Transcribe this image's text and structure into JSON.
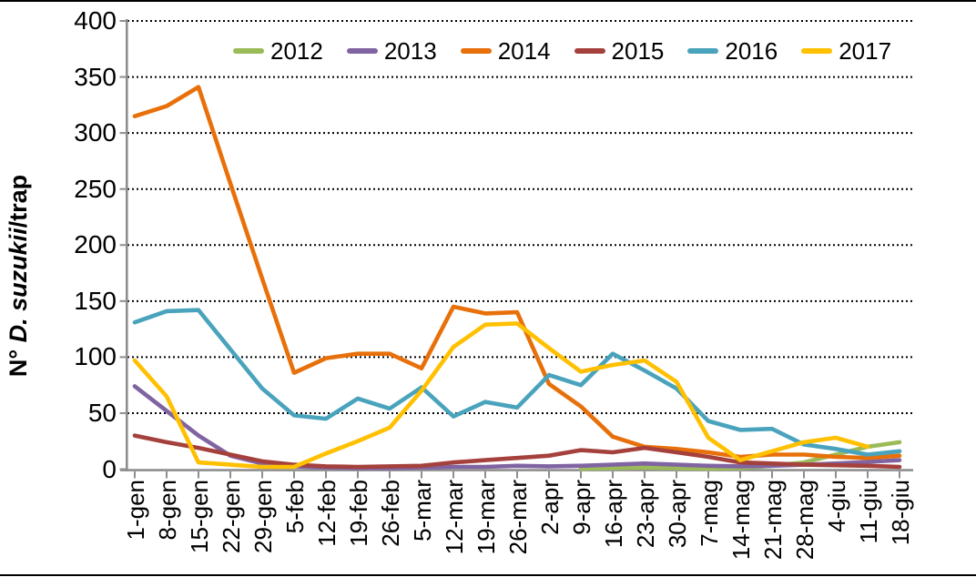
{
  "chart_data": {
    "type": "line",
    "title": "",
    "ylabel": {
      "prefix": "N° ",
      "italic": "D. suzukii",
      "suffix": "/trap",
      "full": "N° D. suzukii/trap"
    },
    "x_categories": [
      "1-gen",
      "8-gen",
      "15-gen",
      "22-gen",
      "29-gen",
      "5-feb",
      "12-feb",
      "19-feb",
      "26-feb",
      "5-mar",
      "12-mar",
      "19-mar",
      "26-mar",
      "2-apr",
      "9-apr",
      "16-apr",
      "23-apr",
      "30-apr",
      "7-mag",
      "14-mag",
      "21-mag",
      "28-mag",
      "4-giu",
      "11-giu",
      "18-giu"
    ],
    "y_axis": {
      "min": 0,
      "max": 400,
      "step": 50,
      "tick_labels": [
        "0",
        "50",
        "100",
        "150",
        "200",
        "250",
        "300",
        "350",
        "400"
      ]
    },
    "legend_position": "top",
    "grid": {
      "horizontal": "dotted",
      "color": "#000000"
    },
    "axis_color": "#8E8E8E",
    "series": [
      {
        "name": "2012",
        "color": "#9BBB59",
        "values": [
          null,
          null,
          null,
          null,
          null,
          null,
          null,
          null,
          null,
          null,
          null,
          null,
          null,
          null,
          0.5,
          1,
          1.5,
          1,
          0.5,
          1,
          3,
          6,
          13,
          20,
          24
        ]
      },
      {
        "name": "2013",
        "color": "#8064A2",
        "values": [
          74,
          52,
          30,
          12,
          5,
          2.5,
          1.5,
          1,
          1,
          1.5,
          2,
          2,
          3,
          2.5,
          3,
          4,
          5,
          4,
          3,
          2.5,
          3,
          4,
          5,
          6.5,
          8
        ]
      },
      {
        "name": "2014",
        "color": "#E8700A",
        "values": [
          315,
          324,
          341,
          255,
          170,
          86,
          99,
          103,
          103,
          90,
          145,
          139,
          140,
          76,
          56,
          29,
          20,
          18,
          15,
          11,
          13,
          13,
          11,
          10,
          12
        ]
      },
      {
        "name": "2015",
        "color": "#A5413C",
        "values": [
          30,
          24,
          19,
          13,
          7,
          4,
          2.5,
          2,
          2.5,
          3,
          6,
          8,
          10,
          12,
          17,
          15,
          19,
          15,
          11,
          6,
          5,
          4,
          3.5,
          3,
          2
        ]
      },
      {
        "name": "2016",
        "color": "#4AA3BC",
        "values": [
          131,
          141,
          142,
          107,
          72,
          48,
          45,
          63,
          54,
          73,
          47,
          60,
          55,
          84,
          75,
          103,
          88,
          72,
          43,
          35,
          36,
          22,
          18,
          13,
          16
        ]
      },
      {
        "name": "2017",
        "color": "#FFC000",
        "values": [
          97,
          65,
          6,
          4,
          2,
          2,
          14,
          25,
          37,
          70,
          109,
          129,
          130,
          108,
          87,
          93,
          97,
          78,
          28,
          8,
          16,
          24,
          28,
          20,
          null
        ]
      }
    ]
  }
}
